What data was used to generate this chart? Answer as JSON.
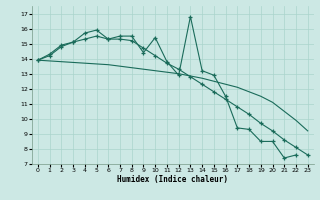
{
  "xlabel": "Humidex (Indice chaleur)",
  "bg_color": "#cce8e4",
  "grid_color": "#aad4cc",
  "line_color": "#1a6b5a",
  "xlim": [
    -0.5,
    23.5
  ],
  "ylim": [
    7,
    17.5
  ],
  "yticks": [
    7,
    8,
    9,
    10,
    11,
    12,
    13,
    14,
    15,
    16,
    17
  ],
  "xticks": [
    0,
    1,
    2,
    3,
    4,
    5,
    6,
    7,
    8,
    9,
    10,
    11,
    12,
    13,
    14,
    15,
    16,
    17,
    18,
    19,
    20,
    21,
    22,
    23
  ],
  "series1_x": [
    0,
    1,
    2,
    3,
    4,
    5,
    6,
    7,
    8,
    9,
    10,
    11,
    12,
    13,
    14,
    15,
    16,
    17,
    18,
    19,
    20,
    21,
    22
  ],
  "series1_y": [
    13.9,
    14.3,
    14.9,
    15.1,
    15.7,
    15.9,
    15.3,
    15.5,
    15.5,
    14.4,
    15.4,
    13.8,
    12.9,
    16.8,
    13.2,
    12.9,
    11.5,
    9.4,
    9.3,
    8.5,
    8.5,
    7.4,
    7.6
  ],
  "series2_x": [
    0,
    1,
    2,
    3,
    4,
    5,
    6,
    7,
    8,
    9,
    10,
    11,
    12,
    13,
    14,
    15,
    16,
    17,
    18,
    19,
    20,
    21,
    22,
    23
  ],
  "series2_y": [
    13.9,
    14.2,
    14.8,
    15.1,
    15.3,
    15.5,
    15.3,
    15.3,
    15.2,
    14.7,
    14.2,
    13.7,
    13.3,
    12.8,
    12.3,
    11.8,
    11.3,
    10.8,
    10.3,
    9.7,
    9.2,
    8.6,
    8.1,
    7.6
  ],
  "series3_x": [
    0,
    1,
    2,
    3,
    4,
    5,
    6,
    7,
    8,
    9,
    10,
    11,
    12,
    13,
    14,
    15,
    16,
    17,
    18,
    19,
    20,
    21,
    22,
    23
  ],
  "series3_y": [
    13.9,
    13.85,
    13.8,
    13.75,
    13.7,
    13.65,
    13.6,
    13.5,
    13.4,
    13.3,
    13.2,
    13.1,
    13.0,
    12.85,
    12.7,
    12.5,
    12.3,
    12.1,
    11.8,
    11.5,
    11.1,
    10.5,
    9.9,
    9.2
  ]
}
